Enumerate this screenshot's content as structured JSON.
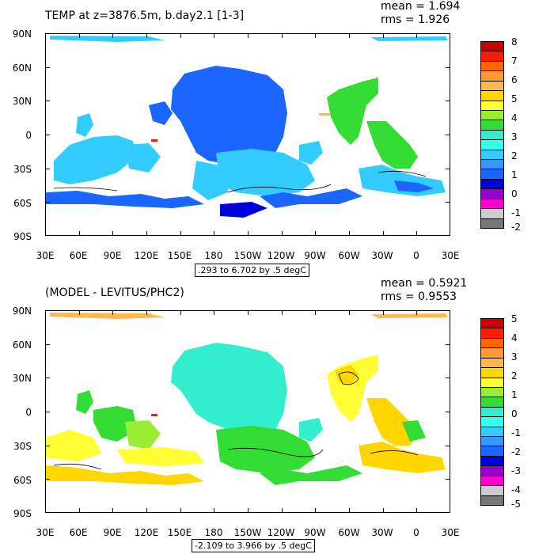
{
  "panels": [
    {
      "title": "TEMP at z=3876.5m, b.day2.1 [1-3]",
      "mean": "mean = 1.694",
      "rms": "rms = 1.926",
      "range": ".293 to 6.702 by .5 degC",
      "lat_labels": [
        "90N",
        "60N",
        "30N",
        "0",
        "30S",
        "60S",
        "90S"
      ],
      "lon_labels": [
        "30E",
        "60E",
        "90E",
        "120E",
        "150E",
        "180",
        "150W",
        "120W",
        "90W",
        "60W",
        "30W",
        "0",
        "30E"
      ],
      "colorbar": {
        "labels": [
          "8",
          "7",
          "6",
          "5",
          "4",
          "3",
          "2",
          "1",
          "0",
          "-1",
          "-2"
        ],
        "colors": [
          "#cc0000",
          "#ff1a00",
          "#ff6600",
          "#ff9933",
          "#ffb84d",
          "#ffd700",
          "#ffff33",
          "#99ee33",
          "#33dd33",
          "#33eecc",
          "#33ffee",
          "#33ccff",
          "#3399ff",
          "#1a66ff",
          "#0000dd",
          "#9900cc",
          "#ff00cc",
          "#cccccc",
          "#777777"
        ]
      }
    },
    {
      "title": "(MODEL - LEVITUS/PHC2)",
      "mean": "mean = 0.5921",
      "rms": "rms = 0.9553",
      "range": "-2.109 to 3.966 by .5 degC",
      "lat_labels": [
        "90N",
        "60N",
        "30N",
        "0",
        "30S",
        "60S",
        "90S"
      ],
      "lon_labels": [
        "30E",
        "60E",
        "90E",
        "120E",
        "150E",
        "180",
        "150W",
        "120W",
        "90W",
        "60W",
        "30W",
        "0",
        "30E"
      ],
      "colorbar": {
        "labels": [
          "5",
          "4",
          "3",
          "2",
          "1",
          "0",
          "-1",
          "-2",
          "-3",
          "-4",
          "-5"
        ],
        "colors": [
          "#cc0000",
          "#ff1a00",
          "#ff6600",
          "#ff9933",
          "#ffb84d",
          "#ffd700",
          "#ffff33",
          "#99ee33",
          "#33dd33",
          "#33eecc",
          "#33ffee",
          "#33ccff",
          "#3399ff",
          "#1a66ff",
          "#0000dd",
          "#9900cc",
          "#ff00cc",
          "#cccccc",
          "#777777"
        ]
      }
    }
  ]
}
